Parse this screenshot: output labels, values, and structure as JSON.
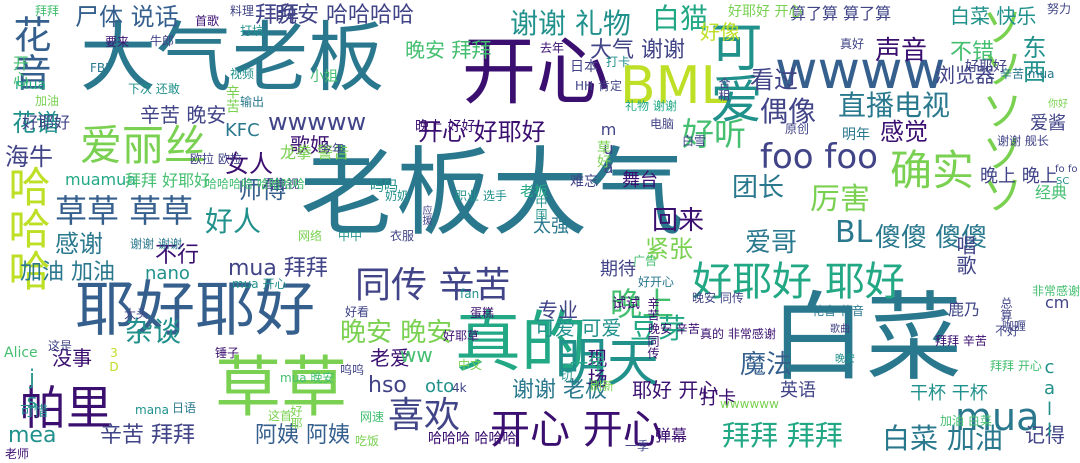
{
  "palette": {
    "dark_purple": "#3b0f70",
    "indigo": "#414487",
    "slate_blue": "#355f8d",
    "teal_blue": "#2a788e",
    "teal": "#21918c",
    "sea_green": "#22a884",
    "green": "#44bf70",
    "lime": "#7ad151",
    "yellow_green": "#bddf26"
  },
  "words": [
    {
      "text": "老板大气",
      "color": "teal_blue"
    },
    {
      "text": "大气老板",
      "color": "teal_blue"
    },
    {
      "text": "白菜",
      "color": "teal_blue"
    },
    {
      "text": "开心",
      "color": "dark_purple"
    },
    {
      "text": "草草",
      "color": "lime"
    },
    {
      "text": "真的",
      "color": "sea_green"
    },
    {
      "text": "耶好耶好",
      "color": "slate_blue"
    },
    {
      "text": "ソソソソソ",
      "color": "lime"
    },
    {
      "text": "wwww",
      "color": "slate_blue"
    },
    {
      "text": "BML",
      "color": "yellow_green"
    },
    {
      "text": "可爱",
      "color": "teal"
    },
    {
      "text": "确实",
      "color": "lime"
    },
    {
      "text": "花音",
      "color": "slate_blue"
    },
    {
      "text": "爱丽丝",
      "color": "lime"
    },
    {
      "text": "明天",
      "color": "teal"
    },
    {
      "text": "帕里",
      "color": "dark_purple"
    },
    {
      "text": "哈哈哈",
      "color": "yellow_green"
    },
    {
      "text": "mua",
      "color": "teal_blue"
    },
    {
      "text": "好耶好 耶好",
      "color": "sea_green"
    },
    {
      "text": "同传 辛苦",
      "color": "indigo"
    },
    {
      "text": "开心 开心",
      "color": "dark_purple"
    },
    {
      "text": "喜欢",
      "color": "indigo"
    },
    {
      "text": "foo foo",
      "color": "indigo"
    },
    {
      "text": "草草 草草",
      "color": "slate_blue"
    },
    {
      "text": "谢谢 礼物",
      "color": "teal"
    },
    {
      "text": "白猫",
      "color": "sea_green"
    },
    {
      "text": "尸体 说话",
      "color": "slate_blue"
    },
    {
      "text": "晚安 哈哈哈哈",
      "color": "indigo"
    },
    {
      "text": "拜拜",
      "color": "indigo"
    },
    {
      "text": "wwwww",
      "color": "indigo"
    },
    {
      "text": "偶像",
      "color": "indigo"
    },
    {
      "text": "直播电视",
      "color": "teal_blue"
    },
    {
      "text": "好听",
      "color": "green"
    },
    {
      "text": "开心 好耶好",
      "color": "dark_purple"
    },
    {
      "text": "辛苦 晚安",
      "color": "indigo"
    },
    {
      "text": "花谱",
      "color": "teal"
    },
    {
      "text": "海牛",
      "color": "indigo"
    },
    {
      "text": "团长",
      "color": "teal_blue"
    },
    {
      "text": "厉害",
      "color": "lime"
    },
    {
      "text": "好人",
      "color": "teal"
    },
    {
      "text": "感谢",
      "color": "teal_blue"
    },
    {
      "text": "不行",
      "color": "dark_purple"
    },
    {
      "text": "mua 拜拜",
      "color": "indigo"
    },
    {
      "text": "爱哥",
      "color": "teal_blue"
    },
    {
      "text": "BL",
      "color": "teal_blue"
    },
    {
      "text": "傻傻 傻傻",
      "color": "teal_blue"
    },
    {
      "text": "晚上",
      "color": "green"
    },
    {
      "text": "晚安 晚安",
      "color": "lime"
    },
    {
      "text": "杂谈",
      "color": "teal"
    },
    {
      "text": "拜拜 拜拜",
      "color": "sea_green"
    },
    {
      "text": "辛苦 拜拜",
      "color": "indigo"
    },
    {
      "text": "阿姨 阿姨",
      "color": "slate_blue"
    },
    {
      "text": "白菜 加油",
      "color": "teal_blue"
    },
    {
      "text": "谢谢 老板",
      "color": "teal_blue"
    },
    {
      "text": "耶好 开心",
      "color": "dark_purple"
    },
    {
      "text": "看过",
      "color": "indigo"
    },
    {
      "text": "声音",
      "color": "dark_purple"
    },
    {
      "text": "不错",
      "color": "green"
    },
    {
      "text": "东西",
      "color": "teal"
    },
    {
      "text": "浏览器",
      "color": "indigo"
    },
    {
      "text": "感觉",
      "color": "dark_purple"
    },
    {
      "text": "师傅",
      "color": "slate_blue"
    },
    {
      "text": "女人",
      "color": "dark_purple"
    },
    {
      "text": "歌姬",
      "color": "dark_purple"
    },
    {
      "text": "回来",
      "color": "dark_purple"
    },
    {
      "text": "紧张",
      "color": "lime"
    },
    {
      "text": "豆芽",
      "color": "sea_green"
    },
    {
      "text": "加油 加油",
      "color": "teal_blue"
    },
    {
      "text": "专业",
      "color": "indigo"
    },
    {
      "text": "可爱 可爱",
      "color": "teal"
    },
    {
      "text": "魔法",
      "color": "slate_blue"
    },
    {
      "text": "老爱",
      "color": "dark_purple"
    },
    {
      "text": "没事",
      "color": "dark_purple"
    },
    {
      "text": "js",
      "color": "teal"
    },
    {
      "text": "hso",
      "color": "indigo"
    },
    {
      "text": "mea",
      "color": "teal"
    },
    {
      "text": "oto",
      "color": "teal"
    },
    {
      "text": "ww",
      "color": "green"
    },
    {
      "text": "nano",
      "color": "teal"
    },
    {
      "text": "晚安 拜拜",
      "color": "green"
    },
    {
      "text": "大气 谢谢",
      "color": "indigo"
    },
    {
      "text": "现场",
      "color": "dark_purple"
    },
    {
      "text": "一年",
      "color": "sea_green"
    },
    {
      "text": "舞台",
      "color": "dark_purple"
    },
    {
      "text": "期待",
      "color": "indigo"
    },
    {
      "text": "太强",
      "color": "teal_blue"
    },
    {
      "text": "唱歌",
      "color": "indigo"
    },
    {
      "text": "打卡",
      "color": "dark_purple"
    },
    {
      "text": "英语",
      "color": "indigo"
    },
    {
      "text": "记得",
      "color": "indigo"
    },
    {
      "text": "call",
      "color": "teal"
    },
    {
      "text": "cm",
      "color": "indigo"
    },
    {
      "text": "弹幕",
      "color": "dark_purple"
    },
    {
      "text": "经典",
      "color": "green"
    },
    {
      "text": "爱酱",
      "color": "indigo"
    },
    {
      "text": "晚上 晚上",
      "color": "indigo"
    },
    {
      "text": "muamua",
      "color": "sea_green"
    },
    {
      "text": "拜拜 好耶好",
      "color": "green"
    },
    {
      "text": "好耶好",
      "color": "indigo"
    },
    {
      "text": "好像",
      "color": "yellow_green"
    },
    {
      "text": "白菜 快乐",
      "color": "teal"
    },
    {
      "text": "算了算 算了算",
      "color": "indigo"
    },
    {
      "text": "好耶好 开心",
      "color": "lime"
    },
    {
      "text": "努力",
      "color": "indigo"
    },
    {
      "text": "视频",
      "color": "teal"
    },
    {
      "text": "要来",
      "color": "dark_purple"
    },
    {
      "text": "牛郎",
      "color": "indigo"
    },
    {
      "text": "首歌",
      "color": "dark_purple"
    },
    {
      "text": "料理",
      "color": "indigo"
    },
    {
      "text": "打坑",
      "color": "teal"
    },
    {
      "text": "输出",
      "color": "teal_blue"
    },
    {
      "text": "下次 还敢",
      "color": "teal"
    },
    {
      "text": "FBI",
      "color": "teal_blue"
    },
    {
      "text": "欧拉 欧拉",
      "color": "indigo"
    },
    {
      "text": "真好",
      "color": "indigo"
    },
    {
      "text": "去年",
      "color": "dark_purple"
    },
    {
      "text": "合租",
      "color": "indigo"
    },
    {
      "text": "电脑",
      "color": "indigo"
    },
    {
      "text": "白雪",
      "color": "indigo"
    },
    {
      "text": "原创",
      "color": "indigo"
    },
    {
      "text": "明年",
      "color": "teal_blue"
    },
    {
      "text": "谢谢 舰长",
      "color": "indigo"
    },
    {
      "text": "辛苦 mua",
      "color": "teal_blue"
    },
    {
      "text": "看电视",
      "color": "indigo"
    },
    {
      "text": "哈哈哈哈 哈哈哈哈",
      "color": "green"
    },
    {
      "text": "谢谢 谢谢",
      "color": "teal_blue"
    },
    {
      "text": "网络",
      "color": "lime"
    },
    {
      "text": "中中",
      "color": "teal"
    },
    {
      "text": "衣服",
      "color": "indigo"
    },
    {
      "text": "中国",
      "color": "teal"
    },
    {
      "text": "职业 选手",
      "color": "teal"
    },
    {
      "text": "mua 开心",
      "color": "teal"
    },
    {
      "text": "大头",
      "color": "indigo"
    },
    {
      "text": "好看",
      "color": "indigo"
    },
    {
      "text": "蛋糕",
      "color": "dark_purple"
    },
    {
      "text": "fan",
      "color": "teal"
    },
    {
      "text": "试试",
      "color": "dark_purple"
    },
    {
      "text": "好开心",
      "color": "teal_blue"
    },
    {
      "text": "真的 非常感谢",
      "color": "dark_purple"
    },
    {
      "text": "花音 花音",
      "color": "teal_blue"
    },
    {
      "text": "拜拜 辛苦",
      "color": "dark_purple"
    },
    {
      "text": "不好",
      "color": "indigo"
    },
    {
      "text": "非常感谢",
      "color": "green"
    },
    {
      "text": "好耶草",
      "color": "dark_purple"
    },
    {
      "text": "晚安 辛苦",
      "color": "dark_purple"
    },
    {
      "text": "晚安 同传",
      "color": "indigo"
    },
    {
      "text": "锤子",
      "color": "dark_purple"
    },
    {
      "text": "呜呜",
      "color": "indigo"
    },
    {
      "text": "中文",
      "color": "lime"
    },
    {
      "text": "mua 晚安",
      "color": "green"
    },
    {
      "text": "4k",
      "color": "indigo"
    },
    {
      "text": "这是",
      "color": "indigo"
    },
    {
      "text": "Alice",
      "color": "green"
    },
    {
      "text": "3D",
      "color": "yellow_green"
    },
    {
      "text": "可惜",
      "color": "teal"
    },
    {
      "text": "mana",
      "color": "teal"
    },
    {
      "text": "日语",
      "color": "teal_blue"
    },
    {
      "text": "这首",
      "color": "lime"
    },
    {
      "text": "网速",
      "color": "green"
    },
    {
      "text": "wwwwww",
      "color": "lime"
    },
    {
      "text": "干杯 干杯",
      "color": "teal"
    },
    {
      "text": "加油 白菜",
      "color": "green"
    },
    {
      "text": "拜拜 开心",
      "color": "green"
    },
    {
      "text": "哈哈哈 哈哈哈",
      "color": "dark_purple"
    },
    {
      "text": "老师",
      "color": "dark_purple"
    },
    {
      "text": "一季",
      "color": "indigo"
    },
    {
      "text": "SC",
      "color": "teal"
    },
    {
      "text": "KFC",
      "color": "teal_blue"
    },
    {
      "text": "拜拜",
      "color": "green"
    },
    {
      "text": "开心",
      "color": "green"
    },
    {
      "text": "mua",
      "color": "sea_green"
    },
    {
      "text": "辛苦",
      "color": "lime"
    },
    {
      "text": "加油",
      "color": "lime"
    },
    {
      "text": "晚上 好好",
      "color": "dark_purple"
    },
    {
      "text": "老板",
      "color": "sea_green"
    },
    {
      "text": "吗吗",
      "color": "teal"
    },
    {
      "text": "小姐",
      "color": "green"
    },
    {
      "text": "日本",
      "color": "indigo"
    },
    {
      "text": "HH",
      "color": "indigo"
    },
    {
      "text": "mua",
      "color": "indigo"
    },
    {
      "text": "草好",
      "color": "lime"
    },
    {
      "text": "肯定",
      "color": "indigo"
    },
    {
      "text": "打卡",
      "color": "teal"
    },
    {
      "text": "礼物 谢谢",
      "color": "sea_green"
    },
    {
      "text": "龙拳 警告",
      "color": "lime"
    },
    {
      "text": "今年",
      "color": "indigo"
    },
    {
      "text": "难忘",
      "color": "indigo"
    },
    {
      "text": "鹿乃",
      "color": "indigo"
    },
    {
      "text": "总算",
      "color": "indigo"
    },
    {
      "text": "咖喱",
      "color": "indigo"
    },
    {
      "text": "好耶好",
      "color": "indigo"
    },
    {
      "text": "你好",
      "color": "lime"
    },
    {
      "text": "fo fo",
      "color": "indigo"
    },
    {
      "text": "奶奶",
      "color": "teal"
    },
    {
      "text": "应援",
      "color": "indigo"
    },
    {
      "text": "一切",
      "color": "teal"
    },
    {
      "text": "刷新",
      "color": "lime"
    },
    {
      "text": "广告",
      "color": "green"
    },
    {
      "text": "辛苦 同传",
      "color": "dark_purple"
    },
    {
      "text": "歌曲",
      "color": "indigo"
    },
    {
      "text": "晚安",
      "color": "teal"
    },
    {
      "text": "好耶",
      "color": "lime"
    },
    {
      "text": "吃饭",
      "color": "lime"
    }
  ]
}
